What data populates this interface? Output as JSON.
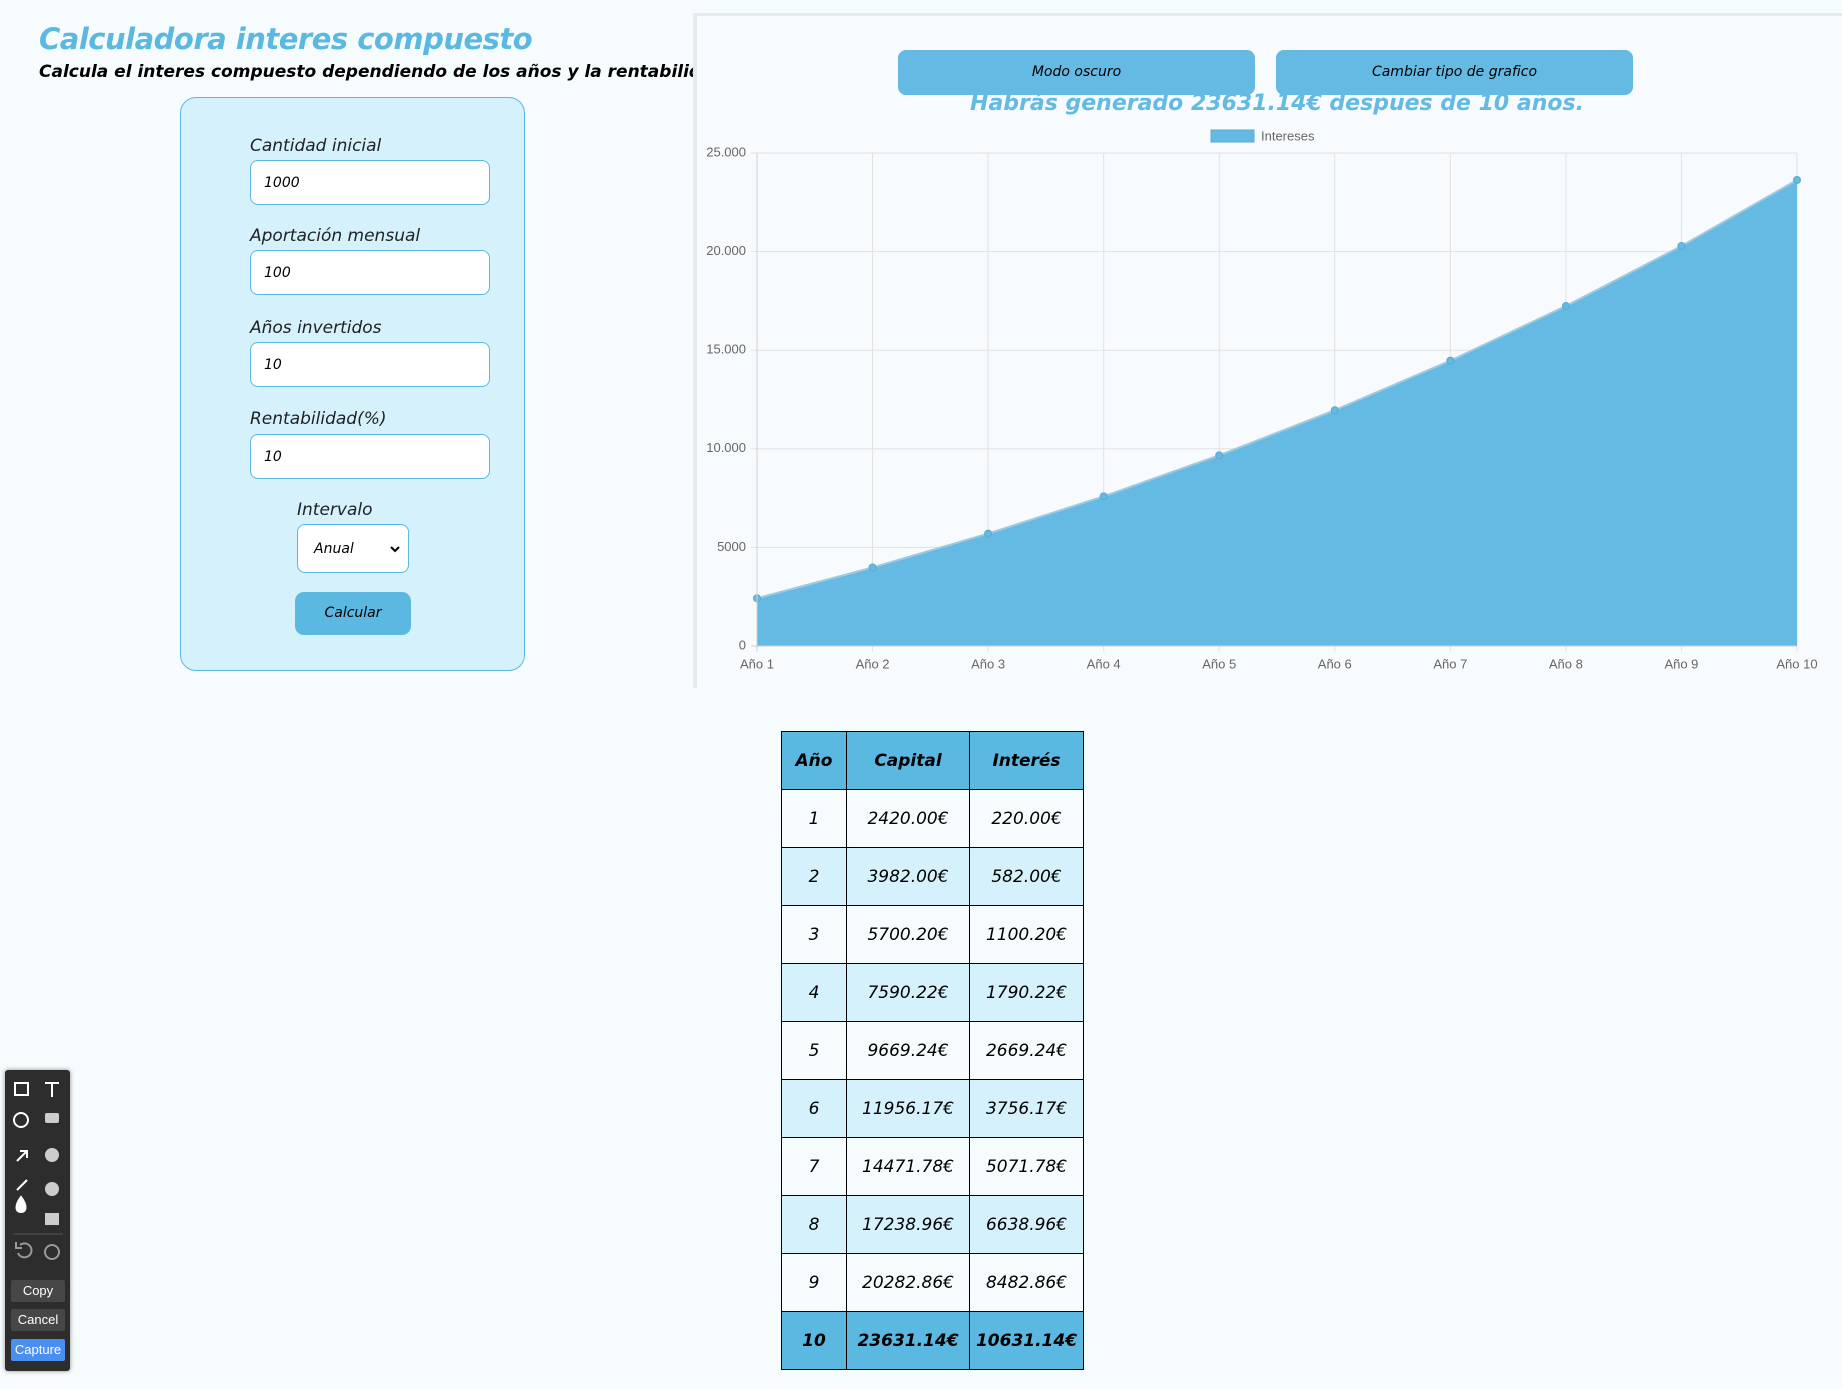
{
  "header": {
    "title": "Calculadora interes compuesto",
    "subtitle": "Calcula el interes compuesto dependiendo de los años y la rentabilidad."
  },
  "form": {
    "fields": [
      {
        "label": "Cantidad inicial",
        "value": "1000"
      },
      {
        "label": "Aportación mensual",
        "value": "100"
      },
      {
        "label": "Años invertidos",
        "value": "10"
      },
      {
        "label": "Rentabilidad(%)",
        "value": "10"
      }
    ],
    "interval": {
      "label": "Intervalo",
      "value": "Anual"
    },
    "submit": "Calcular"
  },
  "buttons": [
    "Modo oscuro",
    "Cambiar tipo de grafico"
  ],
  "chart_data": {
    "type": "area",
    "title": "Habrás generado 23631.14€ despues de 10 años.",
    "categories": [
      "Año 1",
      "Año 2",
      "Año 3",
      "Año 4",
      "Año 5",
      "Año 6",
      "Año 7",
      "Año 8",
      "Año 9",
      "Año 10"
    ],
    "series": [
      {
        "name": "Intereses",
        "color": "#64bae2",
        "values": [
          2420,
          3982,
          5700.2,
          7590.22,
          9669.24,
          11956.17,
          14471.78,
          17238.96,
          20282.86,
          23631.14
        ]
      }
    ],
    "ylim": [
      0,
      25000
    ],
    "yticks": [
      0,
      5000,
      {
        "value": 10000,
        "label": "10.000"
      },
      {
        "value": 15000,
        "label": "15.000"
      },
      {
        "value": 20000,
        "label": "20.000"
      },
      {
        "value": 25000,
        "label": "25.000"
      }
    ],
    "grid": true,
    "legend": "top"
  },
  "table": {
    "header": [
      "Año",
      "Capital",
      "Interés"
    ],
    "rows": [
      [
        "1",
        "2420.00€",
        "220.00€"
      ],
      [
        "2",
        "3982.00€",
        "582.00€"
      ],
      [
        "3",
        "5700.20€",
        "1100.20€"
      ],
      [
        "4",
        "7590.22€",
        "1790.22€"
      ],
      [
        "5",
        "9669.24€",
        "2669.24€"
      ],
      [
        "6",
        "11956.17€",
        "3756.17€"
      ],
      [
        "7",
        "14471.78€",
        "5071.78€"
      ],
      [
        "8",
        "17238.96€",
        "6638.96€"
      ],
      [
        "9",
        "20282.86€",
        "8482.86€"
      ],
      [
        "10",
        "23631.14€",
        "10631.14€"
      ]
    ]
  },
  "toolbar": {
    "buttons": [
      "Copy",
      "Cancel",
      "Capture"
    ]
  }
}
